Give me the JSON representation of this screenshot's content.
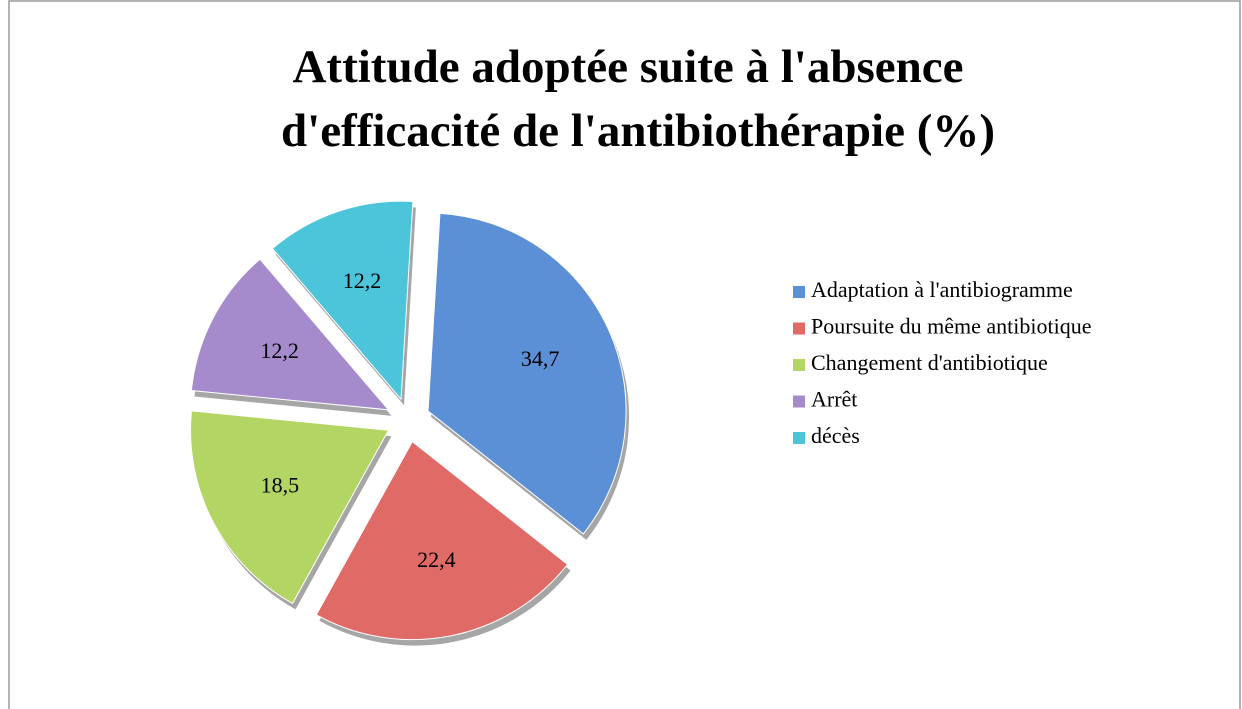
{
  "chart_data": {
    "type": "pie",
    "title": [
      "Attitude adoptée suite à l'absence",
      "d'efficacité de l'antibiothérapie (%)"
    ],
    "categories": [
      "Adaptation à l'antibiogramme",
      "Poursuite du même antibiotique",
      "Changement d'antibiotique",
      "Arrêt",
      "décès"
    ],
    "values": [
      34.7,
      22.4,
      18.5,
      12.2,
      12.2
    ],
    "value_labels": [
      "34,7",
      "22,4",
      "18,5",
      "12,2",
      "12,2"
    ],
    "colors": [
      "#5b8fd6",
      "#e06a66",
      "#b3d564",
      "#a58bcb",
      "#4cc4d9"
    ],
    "legend": "right"
  }
}
